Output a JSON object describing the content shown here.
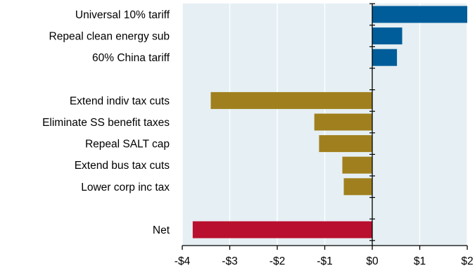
{
  "chart_data": {
    "type": "bar",
    "orientation": "horizontal",
    "title": "",
    "xlabel": "",
    "ylabel": "",
    "xlim": [
      -4,
      2
    ],
    "grid": true,
    "legend": "none",
    "plot_background": "#E6EFF3",
    "zero_line_color": "#000000",
    "bars": [
      {
        "label": "Universal 10% tariff",
        "value": 2.0,
        "color": "#005D9A"
      },
      {
        "label": "Repeal clean energy sub",
        "value": 0.63,
        "color": "#005D9A"
      },
      {
        "label": "60% China tariff",
        "value": 0.52,
        "color": "#005D9A"
      },
      {
        "label": "",
        "value": null,
        "color": ""
      },
      {
        "label": "Extend indiv tax cuts",
        "value": -3.4,
        "color": "#A0801E"
      },
      {
        "label": "Eliminate SS benefit taxes",
        "value": -1.22,
        "color": "#A0801E"
      },
      {
        "label": "Repeal SALT cap",
        "value": -1.12,
        "color": "#A0801E"
      },
      {
        "label": "Extend bus tax cuts",
        "value": -0.63,
        "color": "#A0801E"
      },
      {
        "label": "Lower corp inc tax",
        "value": -0.6,
        "color": "#A0801E"
      },
      {
        "label": "",
        "value": null,
        "color": ""
      },
      {
        "label": "Net",
        "value": -3.78,
        "color": "#B8102E"
      }
    ],
    "x_ticks": [
      {
        "value": -4,
        "label": "-$4"
      },
      {
        "value": -3,
        "label": "-$3"
      },
      {
        "value": -2,
        "label": "-$2"
      },
      {
        "value": -1,
        "label": "-$1"
      },
      {
        "value": 0,
        "label": "$0"
      },
      {
        "value": 1,
        "label": "$1"
      },
      {
        "value": 2,
        "label": "$2"
      }
    ]
  }
}
